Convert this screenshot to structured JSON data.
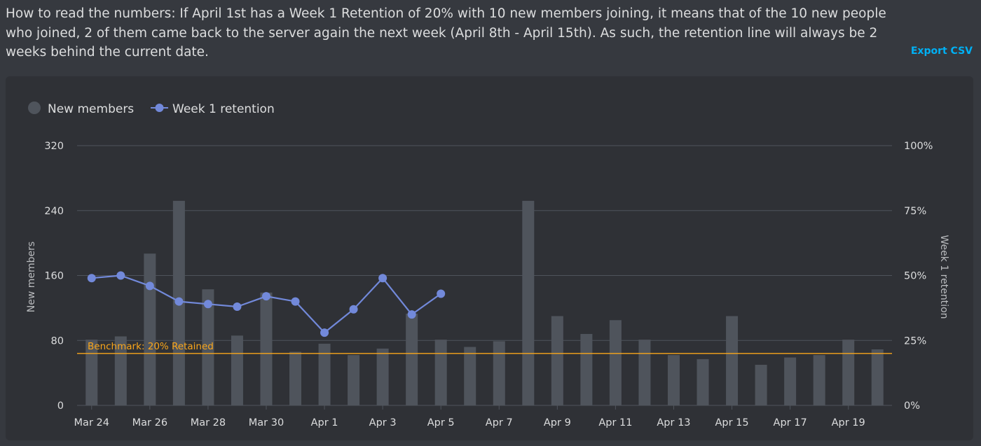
{
  "page": {
    "intro_text": "How to read the numbers: If April 1st has a Week 1 Retention of 20% with 10 new members joining, it means that of the 10 new people who joined, 2 of them came back to the server again the next week (April 8th - April 15th). As such, the retention line will always be 2 weeks behind the current date.",
    "export_label": "Export CSV"
  },
  "colors": {
    "bar": "#4f545c",
    "line": "#7289da",
    "benchmark": "#faa61a",
    "grid": "#4f545c",
    "legend_new_members_dot": "#4f545c"
  },
  "chart_data": {
    "type": "bar+line",
    "legend": [
      "New members",
      "Week 1 retention"
    ],
    "legend_placement": "top-left",
    "grid": true,
    "xlabel": "",
    "ylabel_left": "New members",
    "ylabel_right": "Week 1 retention",
    "ylim_left": [
      0,
      320
    ],
    "ylim_right": [
      0,
      100
    ],
    "yticks_left": [
      "0",
      "80",
      "160",
      "240",
      "320"
    ],
    "yticks_right": [
      "0%",
      "25%",
      "50%",
      "75%",
      "100%"
    ],
    "categories": [
      "Mar 24",
      "Mar 25",
      "Mar 26",
      "Mar 27",
      "Mar 28",
      "Mar 29",
      "Mar 30",
      "Mar 31",
      "Apr 1",
      "Apr 2",
      "Apr 3",
      "Apr 4",
      "Apr 5",
      "Apr 6",
      "Apr 7",
      "Apr 8",
      "Apr 9",
      "Apr 10",
      "Apr 11",
      "Apr 12",
      "Apr 13",
      "Apr 14",
      "Apr 15",
      "Apr 16",
      "Apr 17",
      "Apr 18",
      "Apr 19",
      "Apr 20"
    ],
    "xtick_labels": [
      "Mar 24",
      "Mar 26",
      "Mar 28",
      "Mar 30",
      "Apr 1",
      "Apr 3",
      "Apr 5",
      "Apr 7",
      "Apr 9",
      "Apr 11",
      "Apr 13",
      "Apr 15",
      "Apr 17",
      "Apr 19"
    ],
    "series": [
      {
        "name": "New members",
        "kind": "bar",
        "axis": "left",
        "values": [
          81,
          85,
          187,
          252,
          143,
          86,
          139,
          66,
          76,
          62,
          70,
          113,
          81,
          72,
          79,
          252,
          110,
          88,
          105,
          81,
          62,
          57,
          110,
          50,
          59,
          62,
          81,
          69
        ]
      },
      {
        "name": "Week 1 retention",
        "kind": "line",
        "axis": "right",
        "values": [
          49,
          50,
          46,
          40,
          39,
          38,
          42,
          40,
          28,
          37,
          49,
          35,
          43,
          null,
          null,
          null,
          null,
          null,
          null,
          null,
          null,
          null,
          null,
          null,
          null,
          null,
          null,
          null
        ]
      }
    ],
    "benchmark": {
      "label": "Benchmark: 20% Retained",
      "value": 20,
      "axis": "right"
    }
  }
}
